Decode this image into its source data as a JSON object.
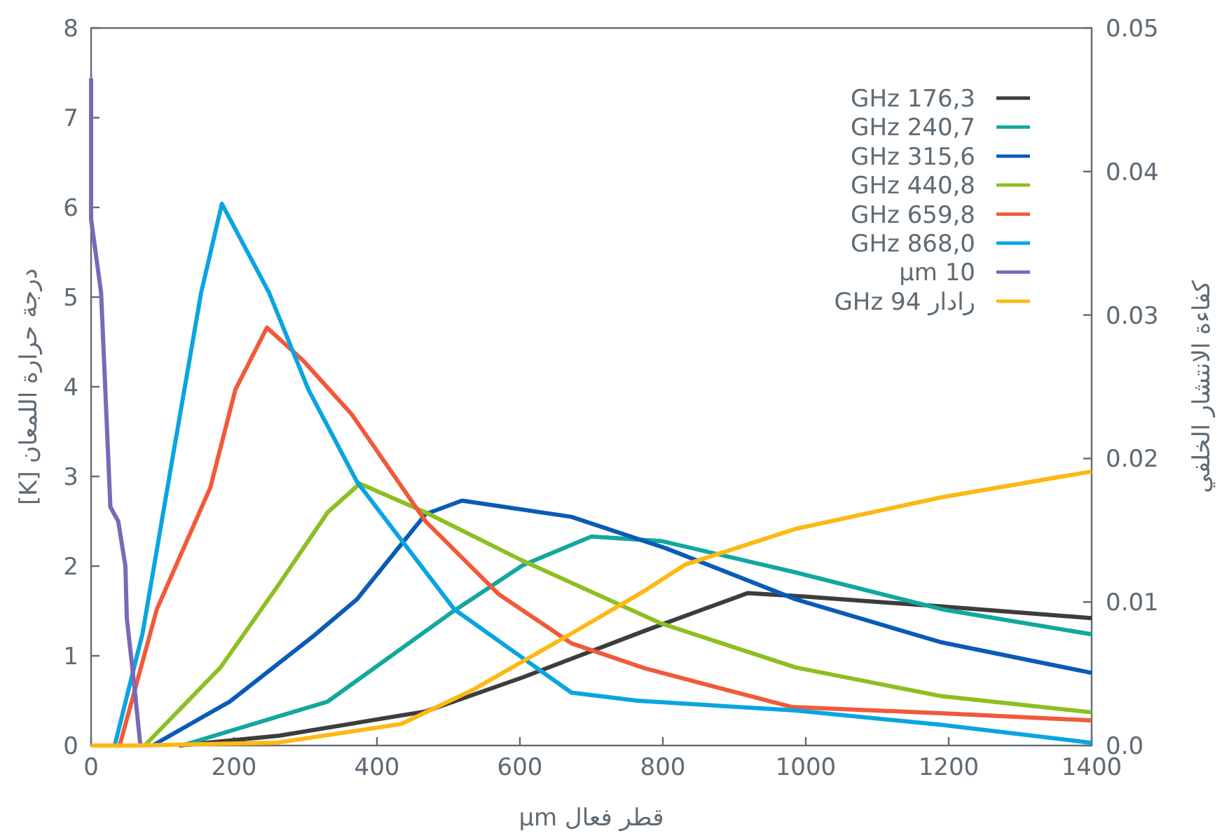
{
  "chart_data": {
    "type": "line",
    "xlabel": "قطر فعال μm",
    "ylabel": "درجة حرارة اللمعان [K]",
    "y2label": "كفاءة الانتشار الخلفي",
    "xlim": [
      0,
      1400
    ],
    "xticks": [
      0,
      200,
      400,
      600,
      800,
      1000,
      1200,
      1400
    ],
    "ylim": [
      0,
      8
    ],
    "yticks": [
      0,
      1,
      2,
      3,
      4,
      5,
      6,
      7,
      8
    ],
    "y2lim": [
      0,
      0.05
    ],
    "y2ticks": [
      {
        "value": 0,
        "label": "0.0"
      },
      0.01,
      0.02,
      0.03,
      0.04,
      0.05
    ],
    "legend": "top right",
    "line_style": "solid",
    "series": [
      {
        "name": "GHz 176,3",
        "color": "#3d3d3d",
        "x": [
          123,
          263,
          468,
          604,
          775,
          850,
          919,
          1000,
          1190,
          1400
        ],
        "values": [
          0,
          0.11,
          0.38,
          0.76,
          1.28,
          1.5,
          1.7,
          1.66,
          1.55,
          1.42
        ]
      },
      {
        "name": "GHz 240,7",
        "color": "#12a89d",
        "x": [
          127,
          331,
          502,
          604,
          700,
          798,
          986,
          1190,
          1400
        ],
        "values": [
          0,
          0.49,
          1.47,
          2.01,
          2.33,
          2.28,
          1.93,
          1.52,
          1.24
        ]
      },
      {
        "name": "GHz 315,6",
        "color": "#0a5bb8",
        "x": [
          86,
          194,
          311,
          372,
          468,
          519,
          672,
          804,
          986,
          1190,
          1400
        ],
        "values": [
          0,
          0.49,
          1.22,
          1.63,
          2.58,
          2.73,
          2.55,
          2.2,
          1.63,
          1.15,
          0.81
        ]
      },
      {
        "name": "GHz 440,8",
        "color": "#8dbf21",
        "x": [
          75,
          181,
          263,
          331,
          376,
          468,
          604,
          798,
          986,
          1190,
          1400
        ],
        "values": [
          0,
          0.87,
          1.8,
          2.6,
          2.92,
          2.6,
          2.06,
          1.36,
          0.87,
          0.55,
          0.37
        ]
      },
      {
        "name": "GHz 659,8",
        "color": "#f05a3a",
        "x": [
          40,
          92,
          167,
          202,
          246,
          297,
          365,
          468,
          570,
          672,
          775,
          980,
          1190,
          1400
        ],
        "values": [
          0,
          1.52,
          2.88,
          3.97,
          4.66,
          4.29,
          3.69,
          2.5,
          1.69,
          1.14,
          0.86,
          0.43,
          0.36,
          0.28
        ]
      },
      {
        "name": "GHz 868,0",
        "color": "#0aa5e0",
        "x": [
          33,
          72,
          113,
          154,
          183,
          249,
          304,
          372,
          508,
          672,
          764,
          986,
          1190,
          1400
        ],
        "values": [
          0,
          1.25,
          3.16,
          5.05,
          6.04,
          5.05,
          3.97,
          2.94,
          1.52,
          0.59,
          0.5,
          0.39,
          0.23,
          0.03
        ]
      },
      {
        "name": "μm 10",
        "color": "#7b68b8",
        "x": [
          0,
          0,
          14,
          27,
          38,
          48,
          50,
          60,
          69
        ],
        "values": [
          7.44,
          5.87,
          5.05,
          2.66,
          2.5,
          2.0,
          1.42,
          0.7,
          0
        ]
      },
      {
        "name": "GHz 94 رادار",
        "color": "#fdb913",
        "axis": "y2",
        "x": [
          0,
          65,
          261,
          434,
          535,
          672,
          775,
          831,
          986,
          1190,
          1400
        ],
        "values": [
          0,
          0,
          0.0002,
          0.0015,
          0.0039,
          0.0078,
          0.0108,
          0.0126,
          0.0151,
          0.0173,
          0.0191
        ]
      }
    ]
  }
}
